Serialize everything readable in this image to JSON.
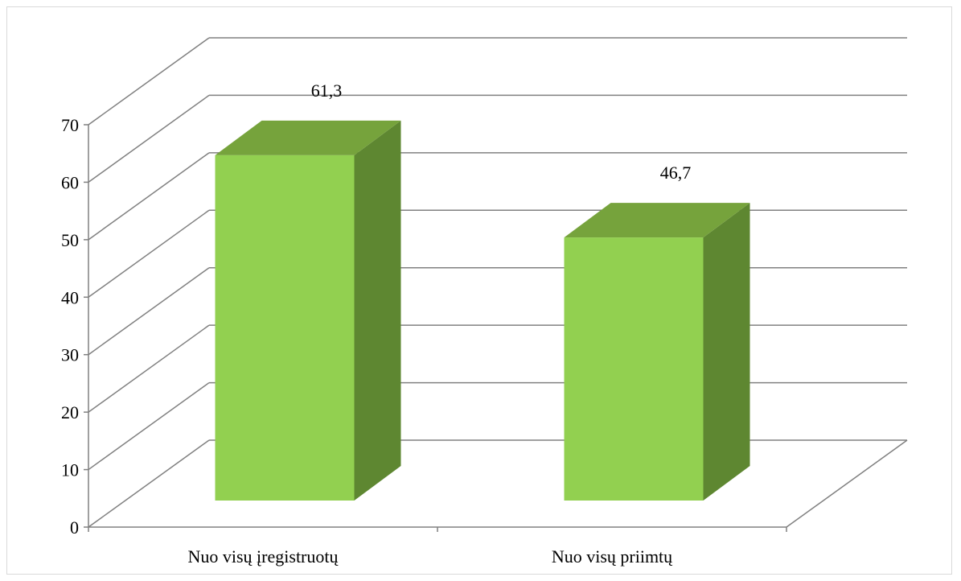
{
  "chart_data": {
    "type": "bar",
    "style": "3d-column",
    "categories": [
      "Nuo visų įregistruotų",
      "Nuo visų priimtų"
    ],
    "values": [
      61.3,
      46.7
    ],
    "value_labels": [
      "61,3",
      "46,7"
    ],
    "title": "",
    "xlabel": "",
    "ylabel": "",
    "ylim": [
      0,
      70
    ],
    "yticks": [
      0,
      10,
      20,
      30,
      40,
      50,
      60,
      70
    ],
    "grid": true,
    "legend": "none",
    "colors": {
      "bar_front": "#92d050",
      "bar_top": "#76a33c",
      "bar_side": "#5e8731",
      "gridline": "#808080",
      "axis": "#808080"
    }
  }
}
